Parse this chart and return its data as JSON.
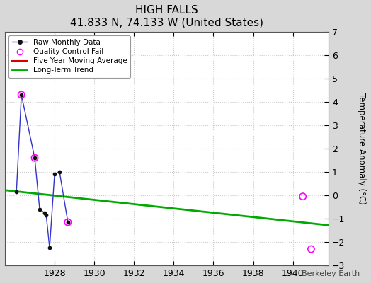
{
  "title": "HIGH FALLS",
  "subtitle": "41.833 N, 74.133 W (United States)",
  "ylabel": "Temperature Anomaly (°C)",
  "watermark": "Berkeley Earth",
  "xlim": [
    1925.5,
    1941.8
  ],
  "ylim": [
    -3,
    7
  ],
  "yticks": [
    -3,
    -2,
    -1,
    0,
    1,
    2,
    3,
    4,
    5,
    6,
    7
  ],
  "xticks": [
    1928,
    1930,
    1932,
    1934,
    1936,
    1938,
    1940
  ],
  "background_color": "#d8d8d8",
  "plot_background": "#ffffff",
  "raw_x": [
    1926.08,
    1926.33,
    1927.0,
    1927.25,
    1927.5,
    1927.58,
    1927.75,
    1928.0,
    1928.25,
    1928.67
  ],
  "raw_y": [
    0.15,
    4.3,
    1.6,
    -0.6,
    -0.75,
    -0.85,
    -2.25,
    0.9,
    1.0,
    -1.15
  ],
  "qc_fail_x": [
    1926.33,
    1927.0,
    1928.67,
    1940.5,
    1940.92
  ],
  "qc_fail_y": [
    4.3,
    1.6,
    -1.15,
    -0.05,
    -2.3
  ],
  "trend_x": [
    1925.5,
    1941.8
  ],
  "trend_y": [
    0.22,
    -1.28
  ],
  "raw_line_color": "#3333cc",
  "raw_dot_color": "#111111",
  "qc_color": "#ff00ff",
  "trend_color": "#00aa00",
  "moving_avg_color": "#dd0000",
  "grid_color": "#cccccc",
  "grid_linestyle": "dotted"
}
